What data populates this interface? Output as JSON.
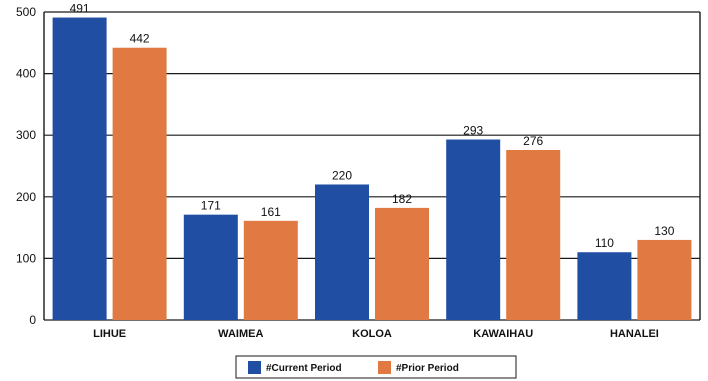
{
  "chart_data": {
    "type": "bar",
    "categories": [
      "LIHUE",
      "WAIMEA",
      "KOLOA",
      "KAWAIHAU",
      "HANALEI"
    ],
    "series": [
      {
        "name": "#Current Period",
        "values": [
          491,
          171,
          220,
          293,
          110
        ],
        "color": "#1f4ea3"
      },
      {
        "name": "#Prior Period",
        "values": [
          442,
          161,
          182,
          276,
          130
        ],
        "color": "#e07a42"
      }
    ],
    "yticks": [
      "0",
      "100",
      "200",
      "300",
      "400",
      "500"
    ],
    "ylim": [
      0,
      500
    ],
    "grid": true,
    "legend": "bottom"
  }
}
